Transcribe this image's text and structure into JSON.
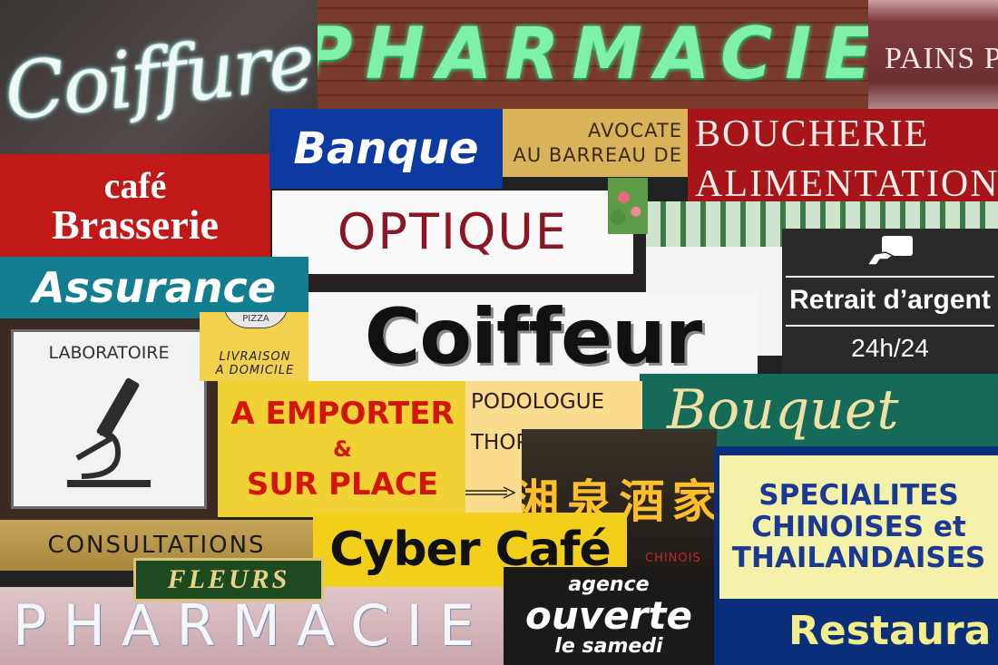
{
  "signs": {
    "coiffure_neon": "Coiffure",
    "pharmacie_top": "PHARMACIE",
    "pains": "PAINS PA",
    "banque": "Banque",
    "avocate": {
      "line1": "AVOCATE",
      "line2": "AU BARREAU DE"
    },
    "boucherie": {
      "line1": "BOUCHERIE",
      "line2": "ALIMENTATION"
    },
    "cafe_brasserie": {
      "line1": "café",
      "line2": "Brasserie"
    },
    "optique": "OPTIQUE",
    "retrait": {
      "line1": "Retrait d’argent",
      "line2": "24h/24"
    },
    "assurance": "Assurance",
    "laboratoire": "LABORATOIRE",
    "pizza": {
      "badge": "PIZZA",
      "line1": "LIVRAISON",
      "line2": "A DOMICILE"
    },
    "coiffeur": "Coiffeur",
    "bouquet": "Bouquet",
    "emporter": {
      "line1": "A EMPORTER",
      "line2": "&",
      "line3": "SUR PLACE"
    },
    "podologue": {
      "line1": "PODOLOGUE",
      "line2": "THOP"
    },
    "chinois": {
      "characters": "湘泉酒家",
      "sub": "CHINOIS"
    },
    "specialites": {
      "line1": "SPECIALITES",
      "line2": "CHINOISES et",
      "line3": "THAILANDAISES",
      "restaurant": "Restaura"
    },
    "consultations": "CONSULTATIONS",
    "cyber_cafe": "Cyber Café",
    "fleurs": "FLEURS",
    "pharmacie_bottom": "PHARMACIE",
    "agence": {
      "line1": "agence",
      "line2": "ouverte",
      "line3": "le samedi"
    }
  },
  "icons": {
    "laboratoire": "microscope-icon",
    "retrait": "card-hand-icon",
    "podologue": "arrow-right-icon"
  }
}
